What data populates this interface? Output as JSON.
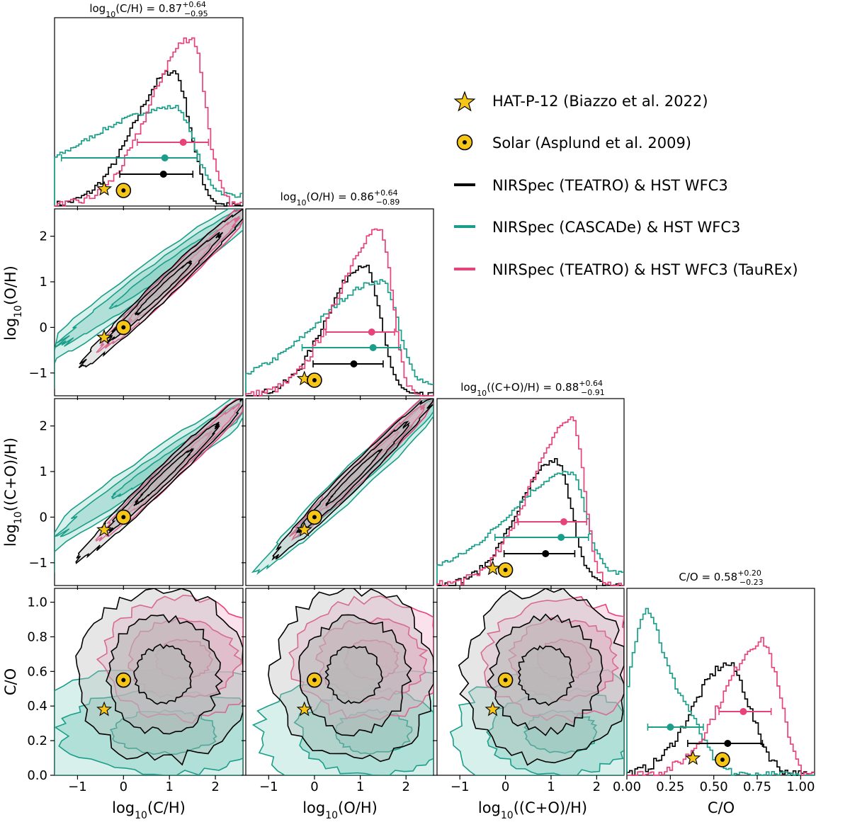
{
  "chart_data": {
    "type": "corner",
    "parameters": [
      {
        "key": "ch",
        "label": "log10(C/H)",
        "range": [
          -1.5,
          2.6
        ],
        "ticks": [
          -1,
          0,
          1,
          2
        ],
        "title": "log10(C/H) = 0.87 +0.64 −0.95",
        "title_main": "log",
        "title_sub": "10",
        "title_rest": "(C/H) = 0.87",
        "title_plus": "+0.64",
        "title_minus": "−0.95"
      },
      {
        "key": "oh",
        "label": "log10(O/H)",
        "range": [
          -1.5,
          2.6
        ],
        "ticks": [
          -1,
          0,
          1,
          2
        ],
        "title": "log10(O/H) = 0.86 +0.64 −0.89",
        "title_main": "log",
        "title_sub": "10",
        "title_rest": "(O/H) = 0.86",
        "title_plus": "+0.64",
        "title_minus": "−0.89"
      },
      {
        "key": "coh",
        "label": "log10((C+O)/H)",
        "range": [
          -1.5,
          2.6
        ],
        "ticks": [
          -1,
          0,
          1,
          2
        ],
        "title": "log10((C+O)/H) = 0.88 +0.64 −0.91",
        "title_main": "log",
        "title_sub": "10",
        "title_rest": "((C+O)/H) = 0.88",
        "title_plus": "+0.64",
        "title_minus": "−0.91"
      },
      {
        "key": "co",
        "label": "C/O",
        "range": [
          0.0,
          1.08
        ],
        "ticks": [
          0.0,
          0.2,
          0.4,
          0.6,
          0.8,
          1.0
        ],
        "title": "C/O = 0.58 +0.20 −0.23",
        "title_main": "C/O = 0.58",
        "title_sub": "",
        "title_rest": "",
        "title_plus": "+0.20",
        "title_minus": "−0.23"
      }
    ],
    "tick_labels": {
      "log": [
        "−1",
        "0",
        "1",
        "2"
      ],
      "co_x": [
        "0.00",
        "0.25",
        "0.50",
        "0.75",
        "1.00"
      ],
      "co_y": [
        "0.0",
        "0.2",
        "0.4",
        "0.6",
        "0.8",
        "1.0"
      ]
    },
    "axis_labels": {
      "ch": {
        "main": "log",
        "sub": "10",
        "rest": "(C/H)"
      },
      "oh": {
        "main": "log",
        "sub": "10",
        "rest": "(O/H)"
      },
      "coh": {
        "main": "log",
        "sub": "10",
        "rest": "((C+O)/H)"
      },
      "co": {
        "main": "C/O",
        "sub": "",
        "rest": ""
      }
    },
    "series": [
      {
        "name": "NIRSpec (TEATRO) & HST WFC3",
        "color": "#000000",
        "median": {
          "ch": 0.87,
          "oh": 0.86,
          "coh": 0.88,
          "co": 0.58
        },
        "err_lo": {
          "ch": 0.95,
          "oh": 0.89,
          "coh": 0.91,
          "co": 0.23
        },
        "err_hi": {
          "ch": 0.64,
          "oh": 0.64,
          "coh": 0.64,
          "co": 0.2
        }
      },
      {
        "name": "NIRSpec (CASCADe) & HST WFC3",
        "color": "#1a9e8a",
        "median": {
          "ch": 0.9,
          "oh": 1.28,
          "coh": 1.22,
          "co": 0.25
        },
        "err_lo": {
          "ch": 2.25,
          "oh": 1.55,
          "coh": 1.45,
          "co": 0.13
        },
        "err_hi": {
          "ch": 0.7,
          "oh": 0.6,
          "coh": 0.6,
          "co": 0.19
        }
      },
      {
        "name": "NIRSpec (TEATRO) & HST WFC3 (TauREx)",
        "color": "#e8427a",
        "median": {
          "ch": 1.3,
          "oh": 1.25,
          "coh": 1.28,
          "co": 0.67
        },
        "err_lo": {
          "ch": 1.0,
          "oh": 1.0,
          "coh": 1.0,
          "co": 0.14
        },
        "err_hi": {
          "ch": 0.55,
          "oh": 0.5,
          "coh": 0.5,
          "co": 0.16
        }
      }
    ],
    "references": [
      {
        "name": "HAT-P-12 (Biazzo et al. 2022)",
        "marker": "star",
        "values": {
          "ch": -0.42,
          "oh": -0.22,
          "coh": -0.28,
          "co": 0.38
        }
      },
      {
        "name": "Solar (Asplund et al. 2009)",
        "marker": "sun",
        "values": {
          "ch": 0.0,
          "oh": 0.0,
          "coh": 0.0,
          "co": 0.55
        }
      }
    ],
    "legend_position": "top-right"
  },
  "colors": {
    "teatro": "#000000",
    "cascade": "#1a9e8a",
    "taurex": "#e8427a",
    "marker_fill": "#f5c518"
  }
}
